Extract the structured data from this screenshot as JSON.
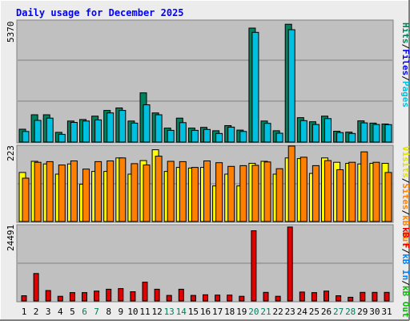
{
  "header": {
    "title": "Daily usage for December 2025"
  },
  "colors": {
    "hits": "#00805c",
    "files": "#00c0e0",
    "sites": "#ff8000",
    "visits": "#ffff00",
    "kbin": "#0080ff",
    "kbout": "#00c000",
    "kbf": "#e00000",
    "title": "#0000ff",
    "weekend_label": "#00805c",
    "weekday_label": "#000000",
    "panel": "#c0c0c0"
  },
  "legend": {
    "panel1": [
      {
        "text": "Hits",
        "color": "#00805c"
      },
      {
        "text": "/",
        "color": "#000000"
      },
      {
        "text": "Files",
        "color": "#0000ff"
      },
      {
        "text": "/",
        "color": "#000000"
      },
      {
        "text": "Pages",
        "color": "#00c0e0"
      }
    ],
    "panel2": [
      {
        "text": "Visits",
        "color": "#e0e000"
      },
      {
        "text": "/",
        "color": "#000000"
      },
      {
        "text": "Sites",
        "color": "#ff8000"
      },
      {
        "text": "/",
        "color": "#000000"
      },
      {
        "text": "kB Out",
        "color": "#ff8000"
      }
    ],
    "panel3": [
      {
        "text": "kB F",
        "color": "#e00000"
      },
      {
        "text": "/",
        "color": "#000000"
      },
      {
        "text": "kB In",
        "color": "#0080ff"
      },
      {
        "text": "/",
        "color": "#000000"
      },
      {
        "text": "kB Out",
        "color": "#00c000"
      }
    ]
  },
  "chart_data": {
    "type": "bar",
    "title": "Daily usage for December 2025",
    "categories": [
      "1",
      "2",
      "3",
      "4",
      "5",
      "6",
      "7",
      "8",
      "9",
      "10",
      "11",
      "12",
      "13",
      "14",
      "15",
      "16",
      "17",
      "18",
      "19",
      "20",
      "21",
      "22",
      "23",
      "24",
      "25",
      "26",
      "27",
      "28",
      "29",
      "30",
      "31"
    ],
    "weekend_days": [
      "6",
      "7",
      "13",
      "14",
      "20",
      "21",
      "27",
      "28"
    ],
    "panels": [
      {
        "id": "hits",
        "ymax_label": "5370",
        "ylim": [
          0,
          5370
        ],
        "series": [
          {
            "name": "Hits",
            "values": [
              570,
              1210,
              1210,
              430,
              930,
              1000,
              1150,
              1400,
              1510,
              930,
              2180,
              1290,
              620,
              1060,
              620,
              650,
              500,
              730,
              530,
              5050,
              930,
              500,
              5220,
              1080,
              900,
              1150,
              480,
              440,
              940,
              840,
              800
            ]
          },
          {
            "name": "Pages",
            "values": [
              470,
              960,
              1060,
              340,
              870,
              930,
              980,
              1290,
              1400,
              840,
              1650,
              1210,
              520,
              860,
              520,
              560,
              380,
              660,
              470,
              4860,
              830,
              390,
              4980,
              950,
              780,
              1040,
              420,
              380,
              850,
              780,
              770
            ]
          }
        ]
      },
      {
        "id": "visits",
        "ymax_label": "223",
        "ylim": [
          0,
          223
        ],
        "series": [
          {
            "name": "Visits",
            "values": [
              145,
              178,
              170,
              140,
              170,
              110,
              148,
              148,
              188,
              140,
              180,
              212,
              148,
              160,
              158,
              160,
              105,
              140,
              105,
              172,
              178,
              140,
              188,
              186,
              142,
              188,
              175,
              172,
              170,
              172,
              172
            ]
          },
          {
            "name": "Sites",
            "values": [
              128,
              175,
              177,
              167,
              179,
              155,
              177,
              179,
              188,
              171,
              167,
              193,
              178,
              177,
              160,
              179,
              174,
              163,
              165,
              166,
              176,
              156,
              223,
              190,
              165,
              180,
              153,
              175,
              206,
              175,
              145
            ]
          }
        ]
      },
      {
        "id": "kbf",
        "ymax_label": "24491",
        "ylim": [
          0,
          24491
        ],
        "series": [
          {
            "name": "kB F",
            "values": [
              1700,
              8900,
              3400,
              1500,
              2700,
              2700,
              3200,
              3800,
              4000,
              3000,
              6100,
              3800,
              1800,
              3800,
              1800,
              2000,
              1900,
              1900,
              1500,
              22800,
              2800,
              1500,
              24000,
              2900,
              2700,
              3200,
              1700,
              1200,
              2800,
              2800,
              2800
            ]
          }
        ]
      }
    ]
  }
}
